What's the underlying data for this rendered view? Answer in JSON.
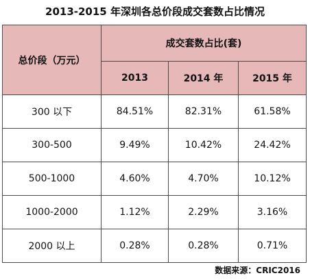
{
  "title": "2013-2015 年深圳各总价段成交套数占比情况",
  "header": {
    "price_range_label": "总价段（万元）",
    "share_label": "成交套数占比(套)",
    "years": [
      "2013",
      "2014 年",
      "2015 年"
    ]
  },
  "rows": [
    {
      "range": "300 以下",
      "values": [
        "84.51%",
        "82.31%",
        "61.58%"
      ]
    },
    {
      "range": "300-500",
      "values": [
        "9.49%",
        "10.42%",
        "24.42%"
      ]
    },
    {
      "range": "500-1000",
      "values": [
        "4.60%",
        "4.70%",
        "10.12%"
      ]
    },
    {
      "range": "1000-2000",
      "values": [
        "1.12%",
        "2.29%",
        "3.16%"
      ]
    },
    {
      "range": "2000 以上",
      "values": [
        "0.28%",
        "0.28%",
        "0.71%"
      ]
    }
  ],
  "source": "数据来源：CRIC2016",
  "colors": {
    "header_bg": "#e6b8b7",
    "border": "#4a4a4a"
  }
}
